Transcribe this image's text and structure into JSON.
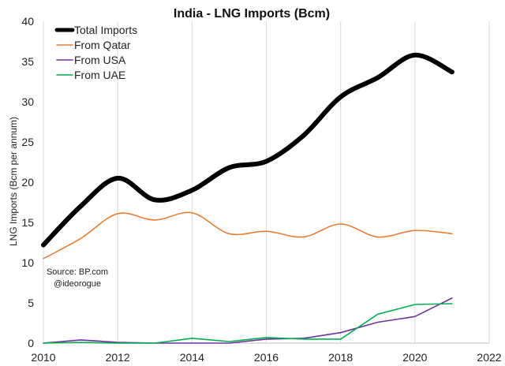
{
  "chart_data": {
    "type": "line",
    "title": "India - LNG Imports (Bcm)",
    "xlabel": "",
    "ylabel": "LNG Imports (Bcm per annum)",
    "xlim": [
      2010,
      2022
    ],
    "ylim": [
      0,
      40
    ],
    "x_ticks": [
      2010,
      2012,
      2014,
      2016,
      2018,
      2020,
      2022
    ],
    "y_ticks": [
      0,
      5,
      10,
      15,
      20,
      25,
      30,
      35,
      40
    ],
    "grid": "vertical",
    "legend_position": "top-left",
    "x": [
      2010,
      2011,
      2012,
      2013,
      2014,
      2015,
      2016,
      2017,
      2018,
      2019,
      2020,
      2021
    ],
    "series": [
      {
        "name": "Total Imports",
        "color": "#000000",
        "values": [
          12.2,
          17.0,
          20.5,
          17.8,
          19.0,
          21.8,
          22.6,
          25.8,
          30.6,
          33.0,
          35.8,
          33.7
        ]
      },
      {
        "name": "From Qatar",
        "color": "#ED7D31",
        "values": [
          10.5,
          13.0,
          16.1,
          15.3,
          16.2,
          13.6,
          13.9,
          13.2,
          14.8,
          13.2,
          14.0,
          13.6
        ]
      },
      {
        "name": "From USA",
        "color": "#7030A0",
        "values": [
          0.0,
          0.4,
          0.1,
          0.0,
          0.0,
          0.0,
          0.5,
          0.6,
          1.3,
          2.6,
          3.3,
          5.6
        ]
      },
      {
        "name": "From UAE",
        "color": "#00B050",
        "values": [
          0.0,
          0.1,
          0.0,
          0.0,
          0.6,
          0.2,
          0.7,
          0.5,
          0.5,
          3.6,
          4.8,
          4.9
        ]
      }
    ],
    "annotations": [
      "Source: BP.com",
      "@ideorogue"
    ]
  }
}
